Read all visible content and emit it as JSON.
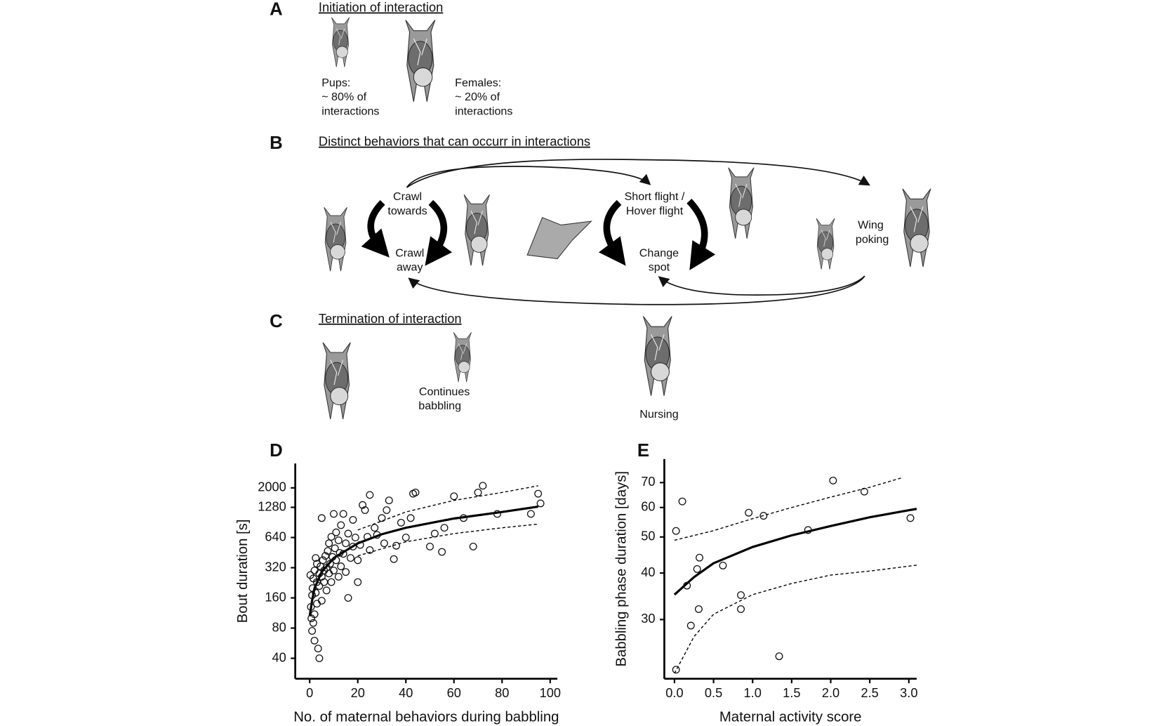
{
  "panels": {
    "A": {
      "letter": "A",
      "title": "Initiation of interaction",
      "pups": [
        "Pups:",
        "~ 80% of",
        "interactions"
      ],
      "females": [
        "Females:",
        "~ 20% of",
        "interactions"
      ]
    },
    "B": {
      "letter": "B",
      "title": "Distinct behaviors that can occurr in interactions",
      "crawl_towards": [
        "Crawl",
        "towards"
      ],
      "crawl_away": [
        "Crawl",
        "away"
      ],
      "short_flight": [
        "Short flight /",
        "Hover flight"
      ],
      "change_spot": [
        "Change",
        "spot"
      ],
      "wing_poking": [
        "Wing",
        "poking"
      ]
    },
    "C": {
      "letter": "C",
      "title": "Termination of interaction",
      "continues": [
        "Continues",
        "babbling"
      ],
      "nursing": "Nursing"
    }
  },
  "chart_data": [
    {
      "type": "scatter",
      "panel": "D",
      "x_label": "No. of maternal behaviors during babbling",
      "y_label": "Bout duration [s]",
      "yscale": "log",
      "xlim": [
        -6,
        103
      ],
      "ylim": [
        25,
        3500
      ],
      "xticks": [
        0,
        20,
        40,
        60,
        80,
        100
      ],
      "yticks": [
        40,
        80,
        160,
        320,
        640,
        1280,
        2000
      ],
      "points": {
        "x": [
          0.3,
          0.5,
          0.7,
          1,
          1,
          1.2,
          1.5,
          1.5,
          2,
          2,
          2,
          2.5,
          2.5,
          3,
          3,
          3,
          3.5,
          4,
          4,
          4,
          4.5,
          5,
          5,
          5,
          5.5,
          6,
          6,
          6.5,
          7,
          7,
          7.5,
          8,
          8,
          8.5,
          9,
          9,
          9.5,
          10,
          10,
          10.5,
          11,
          11,
          12,
          12,
          12.5,
          13,
          13,
          14,
          14,
          15,
          15,
          16,
          16,
          17,
          18,
          18,
          19,
          20,
          20,
          21,
          22,
          23,
          24,
          25,
          25,
          27,
          28,
          30,
          31,
          32,
          33,
          35,
          36,
          38,
          40,
          42,
          43,
          44,
          50,
          52,
          55,
          56,
          60,
          64,
          68,
          70,
          72,
          78,
          92,
          95,
          96
        ],
        "y": [
          270,
          130,
          100,
          75,
          170,
          200,
          90,
          250,
          110,
          60,
          300,
          400,
          180,
          140,
          230,
          350,
          50,
          280,
          40,
          210,
          330,
          260,
          150,
          1000,
          380,
          230,
          300,
          420,
          190,
          320,
          470,
          280,
          560,
          350,
          230,
          650,
          410,
          300,
          1100,
          500,
          380,
          720,
          260,
          600,
          450,
          330,
          850,
          440,
          1100,
          290,
          560,
          700,
          160,
          400,
          520,
          960,
          640,
          230,
          380,
          540,
          1350,
          1200,
          650,
          1700,
          480,
          800,
          680,
          1000,
          560,
          1200,
          1500,
          390,
          530,
          900,
          640,
          1000,
          1750,
          1800,
          520,
          700,
          460,
          800,
          1650,
          1000,
          520,
          1800,
          2100,
          1100,
          1100,
          1750,
          1400
        ]
      },
      "fit": {
        "x": [
          0,
          1,
          2,
          5,
          10,
          20,
          30,
          40,
          60,
          80,
          95
        ],
        "y": [
          105,
          150,
          200,
          290,
          400,
          560,
          690,
          800,
          990,
          1150,
          1300
        ]
      },
      "ci_upper": {
        "x": [
          20,
          40,
          60,
          80,
          95
        ],
        "y": [
          760,
          1150,
          1500,
          1800,
          2100
        ]
      },
      "ci_lower": {
        "x": [
          20,
          40,
          60,
          80,
          95
        ],
        "y": [
          420,
          580,
          700,
          800,
          870
        ]
      }
    },
    {
      "type": "scatter",
      "panel": "E",
      "x_label": "Maternal activity score",
      "y_label": "Babbling phase duration [days]",
      "yscale": "log",
      "xlim": [
        -0.13,
        3.1
      ],
      "ylim": [
        20.8,
        81
      ],
      "xticks": [
        {
          "value": 0,
          "label": "0.0"
        },
        {
          "value": 0.5,
          "label": "0.5"
        },
        {
          "value": 1,
          "label": "1.0"
        },
        {
          "value": 1.5,
          "label": "1.5"
        },
        {
          "value": 2,
          "label": "2.0"
        },
        {
          "value": 2.5,
          "label": "2.5"
        },
        {
          "value": 3,
          "label": "3.0"
        }
      ],
      "yticks": [
        30,
        40,
        50,
        60,
        70
      ],
      "points": {
        "x": [
          0.02,
          0.1,
          0.16,
          0.21,
          0.29,
          0.32,
          0.31,
          0.62,
          0.95,
          1.14,
          0.85,
          0.85,
          1.34,
          1.71,
          2.03,
          2.43,
          3.02,
          0.02
        ],
        "y": [
          51.9,
          62.3,
          37.0,
          28.9,
          41.0,
          44.0,
          32.0,
          41.9,
          58.1,
          57.0,
          34.9,
          32.0,
          23.9,
          52.2,
          70.9,
          66.2,
          56.2,
          22.0
        ]
      },
      "fit": {
        "x": [
          0,
          0.25,
          0.5,
          1,
          1.5,
          2,
          2.5,
          3,
          3.1
        ],
        "y": [
          35,
          39,
          42.5,
          47,
          50.5,
          53.5,
          56.5,
          59,
          59.5
        ]
      },
      "ci_upper": {
        "x": [
          0,
          0.5,
          1,
          1.5,
          2,
          2.5,
          2.9
        ],
        "y": [
          49,
          52,
          56,
          60,
          64,
          68,
          72
        ]
      },
      "ci_lower": {
        "x": [
          0,
          0.25,
          0.5,
          1,
          1.5,
          2,
          2.5,
          3.1
        ],
        "y": [
          21.5,
          27,
          31,
          35,
          37.5,
          39.5,
          40.5,
          42
        ]
      }
    }
  ]
}
